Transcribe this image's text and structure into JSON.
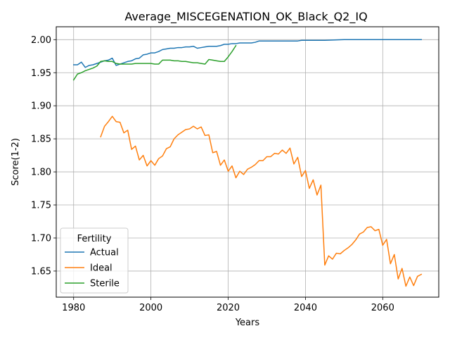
{
  "chart_data": {
    "type": "line",
    "title": "Average_MISCEGENATION_OK_Black_Q2_IQ",
    "xlabel": "Years",
    "ylabel": "Score(1-2)",
    "xlim": [
      1975.5,
      2074.5
    ],
    "ylim": [
      1.6105,
      2.0195
    ],
    "xticks": [
      1980,
      2000,
      2020,
      2040,
      2060
    ],
    "yticks": [
      1.65,
      1.7,
      1.75,
      1.8,
      1.85,
      1.9,
      1.95,
      2.0
    ],
    "grid": true,
    "legend": {
      "title": "Fertility",
      "position": "lower-left"
    },
    "series": [
      {
        "name": "Actual",
        "color": "#1f77b4",
        "x": [
          1980,
          1981,
          1982,
          1983,
          1984,
          1985,
          1986,
          1987,
          1988,
          1989,
          1990,
          1991,
          1992,
          1993,
          1994,
          1995,
          1996,
          1997,
          1998,
          1999,
          2000,
          2001,
          2002,
          2003,
          2004,
          2005,
          2006,
          2007,
          2008,
          2009,
          2010,
          2011,
          2012,
          2013,
          2014,
          2015,
          2016,
          2017,
          2018,
          2019,
          2020,
          2021,
          2022,
          2023,
          2024,
          2025,
          2026,
          2027,
          2028,
          2029,
          2030,
          2031,
          2032,
          2033,
          2034,
          2035,
          2036,
          2037,
          2038,
          2039,
          2040,
          2042,
          2045,
          2050,
          2055,
          2060,
          2065,
          2070
        ],
        "y": [
          1.962,
          1.962,
          1.966,
          1.958,
          1.961,
          1.962,
          1.964,
          1.966,
          1.968,
          1.969,
          1.972,
          1.961,
          1.963,
          1.965,
          1.967,
          1.968,
          1.971,
          1.972,
          1.977,
          1.978,
          1.98,
          1.98,
          1.982,
          1.985,
          1.986,
          1.987,
          1.987,
          1.988,
          1.988,
          1.989,
          1.989,
          1.99,
          1.987,
          1.988,
          1.989,
          1.99,
          1.99,
          1.99,
          1.991,
          1.993,
          1.993,
          1.994,
          1.994,
          1.995,
          1.995,
          1.995,
          1.995,
          1.996,
          1.998,
          1.998,
          1.998,
          1.998,
          1.998,
          1.998,
          1.998,
          1.998,
          1.998,
          1.998,
          1.998,
          1.999,
          1.999,
          1.999,
          1.999,
          2.0,
          2.0,
          2.0,
          2.0,
          2.0
        ]
      },
      {
        "name": "Ideal",
        "color": "#ff7f0e",
        "x": [
          1987,
          1988,
          1989,
          1990,
          1991,
          1992,
          1993,
          1994,
          1995,
          1996,
          1997,
          1998,
          1999,
          2000,
          2001,
          2002,
          2003,
          2004,
          2005,
          2006,
          2007,
          2008,
          2009,
          2010,
          2011,
          2012,
          2013,
          2014,
          2015,
          2016,
          2017,
          2018,
          2019,
          2020,
          2021,
          2022,
          2023,
          2024,
          2025,
          2026,
          2027,
          2028,
          2029,
          2030,
          2031,
          2032,
          2033,
          2034,
          2035,
          2036,
          2037,
          2038,
          2039,
          2040,
          2041,
          2042,
          2043,
          2044,
          2045,
          2046,
          2047,
          2048,
          2049,
          2050,
          2051,
          2052,
          2053,
          2054,
          2055,
          2056,
          2057,
          2058,
          2059,
          2060,
          2061,
          2062,
          2063,
          2064,
          2065,
          2066,
          2067,
          2068,
          2069,
          2070
        ],
        "y": [
          1.853,
          1.869,
          1.876,
          1.884,
          1.876,
          1.875,
          1.859,
          1.863,
          1.834,
          1.839,
          1.818,
          1.825,
          1.809,
          1.817,
          1.81,
          1.82,
          1.824,
          1.835,
          1.838,
          1.85,
          1.856,
          1.86,
          1.864,
          1.865,
          1.869,
          1.865,
          1.868,
          1.855,
          1.856,
          1.829,
          1.831,
          1.81,
          1.818,
          1.801,
          1.809,
          1.791,
          1.801,
          1.796,
          1.804,
          1.807,
          1.811,
          1.817,
          1.817,
          1.823,
          1.823,
          1.828,
          1.827,
          1.833,
          1.828,
          1.836,
          1.812,
          1.822,
          1.793,
          1.802,
          1.775,
          1.788,
          1.765,
          1.78,
          1.659,
          1.673,
          1.668,
          1.677,
          1.676,
          1.681,
          1.685,
          1.69,
          1.697,
          1.706,
          1.709,
          1.716,
          1.717,
          1.711,
          1.713,
          1.689,
          1.698,
          1.661,
          1.675,
          1.638,
          1.654,
          1.627,
          1.641,
          1.628,
          1.642,
          1.645
        ]
      },
      {
        "name": "Sterile",
        "color": "#2ca02c",
        "x": [
          1980,
          1981,
          1982,
          1983,
          1984,
          1985,
          1986,
          1987,
          1988,
          1989,
          1990,
          1991,
          1992,
          1993,
          1994,
          1995,
          1996,
          1997,
          1998,
          1999,
          2000,
          2001,
          2002,
          2003,
          2004,
          2005,
          2006,
          2007,
          2008,
          2009,
          2010,
          2011,
          2012,
          2013,
          2014,
          2015,
          2016,
          2017,
          2018,
          2019,
          2020,
          2021,
          2022
        ],
        "y": [
          1.939,
          1.948,
          1.95,
          1.953,
          1.955,
          1.957,
          1.96,
          1.967,
          1.968,
          1.967,
          1.967,
          1.964,
          1.963,
          1.963,
          1.963,
          1.963,
          1.964,
          1.964,
          1.964,
          1.964,
          1.964,
          1.963,
          1.963,
          1.969,
          1.969,
          1.969,
          1.968,
          1.968,
          1.967,
          1.967,
          1.966,
          1.965,
          1.965,
          1.964,
          1.963,
          1.97,
          1.969,
          1.968,
          1.967,
          1.967,
          1.974,
          1.982,
          1.991
        ]
      }
    ]
  }
}
